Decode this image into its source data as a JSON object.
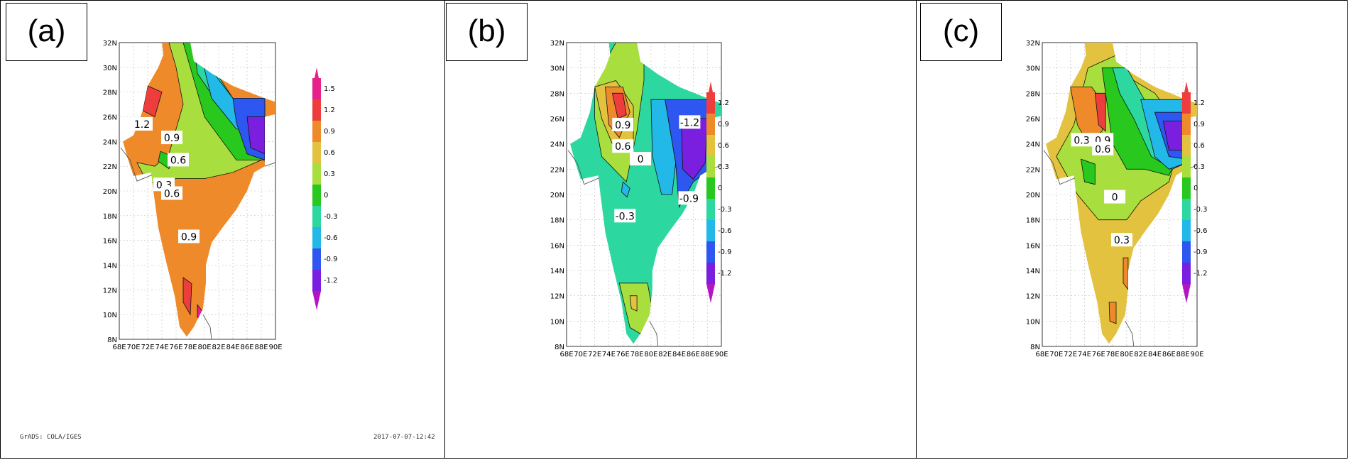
{
  "panels": [
    {
      "label": "(a)",
      "lat_labels": [
        "32N",
        "30N",
        "28N",
        "26N",
        "24N",
        "22N",
        "20N",
        "18N",
        "16N",
        "14N",
        "12N",
        "10N",
        "8N"
      ],
      "lon_labels": [
        "68E",
        "70E",
        "72E",
        "74E",
        "76E",
        "78E",
        "80E",
        "82E",
        "84E",
        "86E",
        "88E",
        "90E"
      ],
      "colorbar": [
        "1.5",
        "1.2",
        "0.9",
        "0.6",
        "0.3",
        "0",
        "-0.3",
        "-0.6",
        "-0.9",
        "-1.2"
      ],
      "contour_labels": [
        "1.2",
        "0.9",
        "0.6",
        "0.3",
        "0.6",
        "0.9"
      ],
      "footer_left": "GrADS: COLA/IGES",
      "footer_right": "2017-07-07-12:42"
    },
    {
      "label": "(b)",
      "lat_labels": [
        "32N",
        "30N",
        "28N",
        "26N",
        "24N",
        "22N",
        "20N",
        "18N",
        "16N",
        "14N",
        "12N",
        "10N",
        "8N"
      ],
      "lon_labels": [
        "68E",
        "70E",
        "72E",
        "74E",
        "76E",
        "78E",
        "80E",
        "82E",
        "84E",
        "86E",
        "88E",
        "90E"
      ],
      "colorbar": [
        "1.2",
        "0.9",
        "0.6",
        "0.3",
        "0",
        "-0.3",
        "-0.6",
        "-0.9",
        "-1.2"
      ],
      "contour_labels": [
        "0.9",
        "0.6",
        "0",
        "-0.3",
        "-1.2",
        "-0.9"
      ]
    },
    {
      "label": "(c)",
      "lat_labels": [
        "32N",
        "30N",
        "28N",
        "26N",
        "24N",
        "22N",
        "20N",
        "18N",
        "16N",
        "14N",
        "12N",
        "10N",
        "8N"
      ],
      "lon_labels": [
        "68E",
        "70E",
        "72E",
        "74E",
        "76E",
        "78E",
        "80E",
        "82E",
        "84E",
        "86E",
        "88E",
        "90E"
      ],
      "colorbar": [
        "1.2",
        "0.9",
        "0.6",
        "0.3",
        "0",
        "-0.3",
        "-0.6",
        "-0.9",
        "-1.2"
      ],
      "contour_labels": [
        "0.3",
        "0.9",
        "0.6",
        "0",
        "0.3"
      ]
    }
  ]
}
